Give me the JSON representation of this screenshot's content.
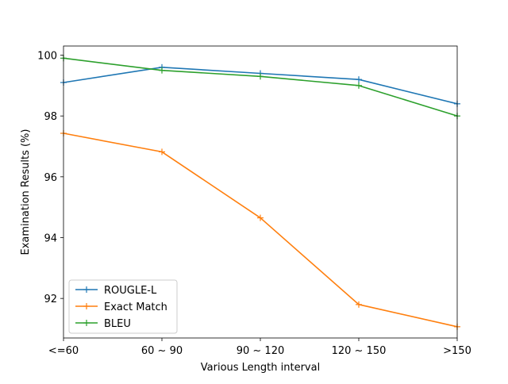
{
  "chart_data": {
    "type": "line",
    "title": "",
    "xlabel": "Various Length interval",
    "ylabel": "Examination Results (%)",
    "categories": [
      "<=60",
      "60 ~ 90",
      "90 ~ 120",
      "120 ~ 150",
      ">150"
    ],
    "ylim": [
      90.7,
      100.3
    ],
    "yticks": [
      92,
      94,
      96,
      98,
      100
    ],
    "grid": false,
    "legend_position": "lower-left",
    "series": [
      {
        "name": "ROUGLE-L",
        "color": "#1f77b4",
        "values": [
          99.1,
          99.6,
          99.4,
          99.2,
          98.4
        ]
      },
      {
        "name": "Exact Match",
        "color": "#ff7f0e",
        "values": [
          97.43,
          96.82,
          94.65,
          91.8,
          91.07
        ]
      },
      {
        "name": "BLEU",
        "color": "#2ca02c",
        "values": [
          99.9,
          99.5,
          99.3,
          99.0,
          98.0
        ]
      }
    ]
  }
}
